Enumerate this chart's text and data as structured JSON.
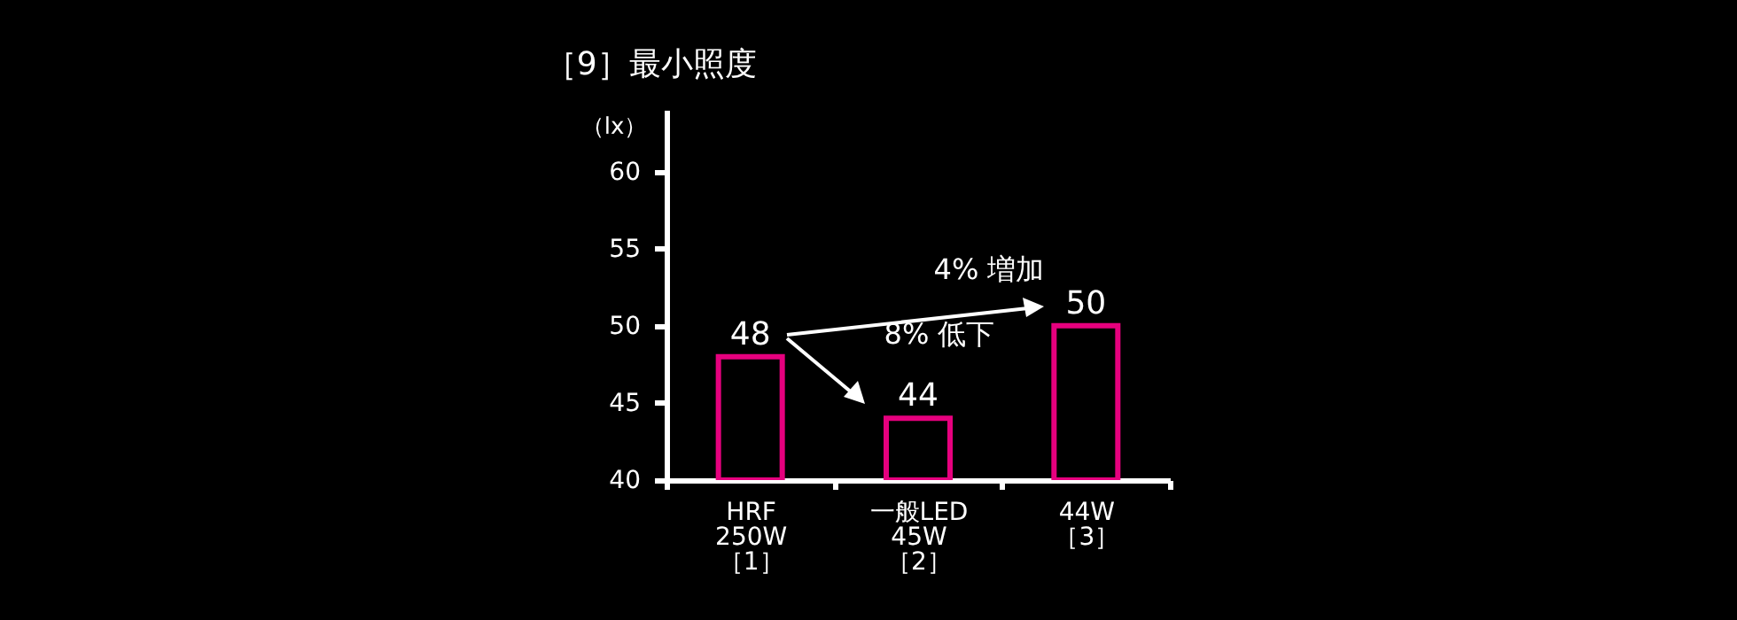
{
  "chart_data": {
    "type": "bar",
    "title": "［9］最小照度",
    "ylabel": "（lx）",
    "categories": [
      "HRF\n250W\n［1］",
      "一般LED\n45W\n［2］",
      "44W\n［3］"
    ],
    "series": [
      {
        "color": "#e6007e",
        "values": [
          48,
          44,
          50
        ]
      }
    ],
    "ylim": [
      40,
      64
    ],
    "yticks": [
      40,
      45,
      50,
      55,
      60
    ],
    "grid": false,
    "data_labels": true,
    "annotations": [
      "4% 増加",
      "8% 低下"
    ]
  }
}
